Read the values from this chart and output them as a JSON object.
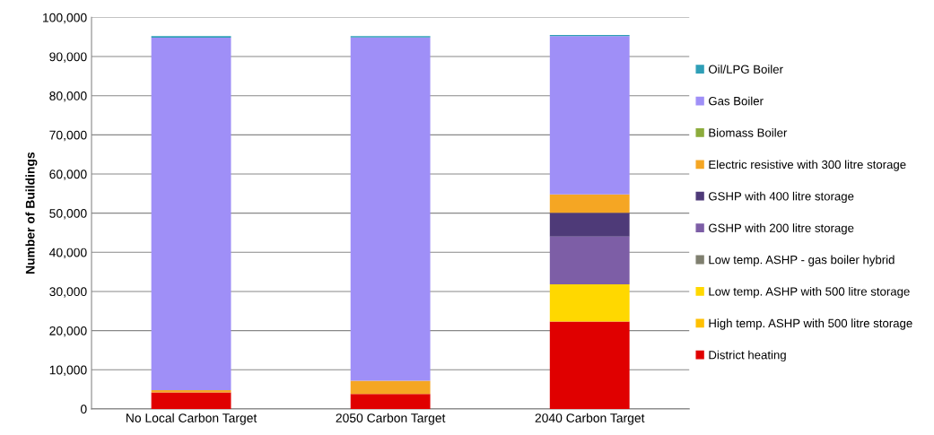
{
  "chart_data": {
    "type": "bar",
    "stacked": true,
    "ylabel": "Number of Buildings",
    "categories": [
      "No Local Carbon Target",
      "2050 Carbon Target",
      "2040 Carbon Target"
    ],
    "series": [
      {
        "name": "District heating",
        "color": "#e00000",
        "values": [
          4200,
          3800,
          22300
        ]
      },
      {
        "name": "High temp. ASHP with 500 litre storage",
        "color": "#ffc000",
        "values": [
          0,
          0,
          0
        ]
      },
      {
        "name": "Low temp. ASHP with 500 litre storage",
        "color": "#ffd800",
        "values": [
          0,
          0,
          9500
        ]
      },
      {
        "name": "Low temp. ASHP - gas boiler hybrid",
        "color": "#7f7f6f",
        "values": [
          0,
          0,
          0
        ]
      },
      {
        "name": "GSHP with 200 litre storage",
        "color": "#7d5ea6",
        "values": [
          0,
          0,
          12200
        ]
      },
      {
        "name": "GSHP with 400 litre storage",
        "color": "#4e3a78",
        "values": [
          0,
          0,
          6100
        ]
      },
      {
        "name": "Electric resistive with 300 litre storage",
        "color": "#f5a623",
        "values": [
          600,
          3400,
          4700
        ]
      },
      {
        "name": "Biomass Boiler",
        "color": "#8cac3c",
        "values": [
          0,
          0,
          0
        ]
      },
      {
        "name": "Gas Boiler",
        "color": "#9f8ff7",
        "values": [
          90000,
          87700,
          40400
        ]
      },
      {
        "name": "Oil/LPG Boiler",
        "color": "#2f9fb7",
        "values": [
          400,
          300,
          300
        ]
      }
    ],
    "ylim": [
      0,
      100000
    ],
    "yticks": [
      {
        "value": 0,
        "label": "0"
      },
      {
        "value": 10000,
        "label": "10,000"
      },
      {
        "value": 20000,
        "label": "20,000"
      },
      {
        "value": 30000,
        "label": "30,000"
      },
      {
        "value": 40000,
        "label": "40,000"
      },
      {
        "value": 50000,
        "label": "50,000"
      },
      {
        "value": 60000,
        "label": "60,000"
      },
      {
        "value": 70000,
        "label": "70,000"
      },
      {
        "value": 80000,
        "label": "80,000"
      },
      {
        "value": 90000,
        "label": "90,000"
      },
      {
        "value": 100000,
        "label": "100,000"
      }
    ],
    "grid": "y",
    "legend": "right"
  }
}
